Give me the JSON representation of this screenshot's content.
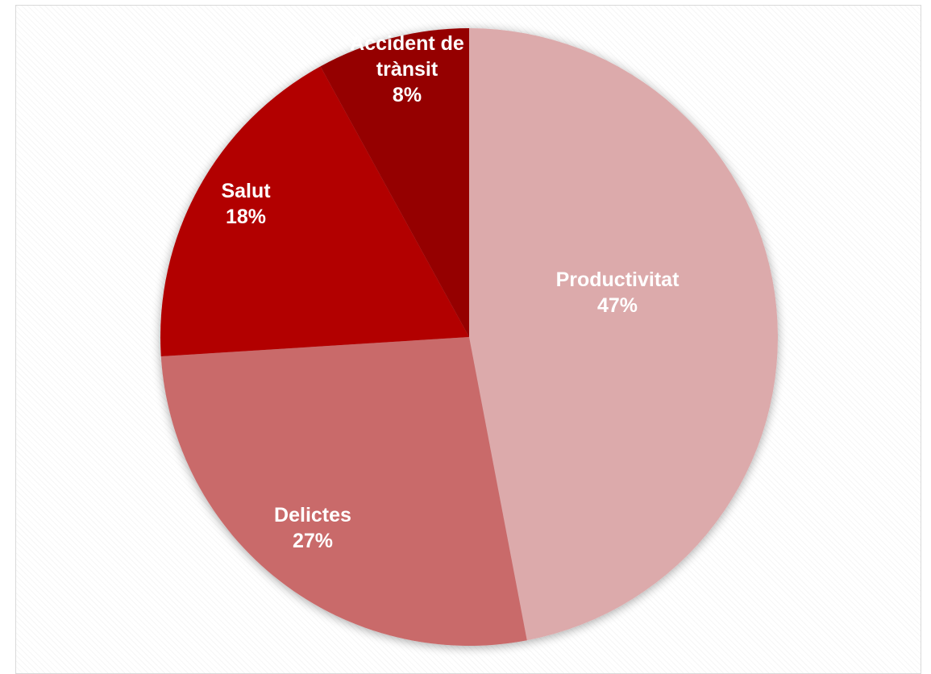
{
  "chart_data": {
    "type": "pie",
    "title": "",
    "start_angle_deg": 0,
    "direction": "clockwise",
    "legend": "none",
    "slices": [
      {
        "label_lines": [
          "Productivitat"
        ],
        "value_label": "47%",
        "value": 47,
        "color": "#dcaaab"
      },
      {
        "label_lines": [
          "Delictes"
        ],
        "value_label": "27%",
        "value": 27,
        "color": "#c96a6b"
      },
      {
        "label_lines": [
          "Salut"
        ],
        "value_label": "18%",
        "value": 18,
        "color": "#b20000"
      },
      {
        "label_lines": [
          "Accident de",
          "trànsit"
        ],
        "value_label": "8%",
        "value": 8,
        "color": "#950000"
      }
    ]
  }
}
